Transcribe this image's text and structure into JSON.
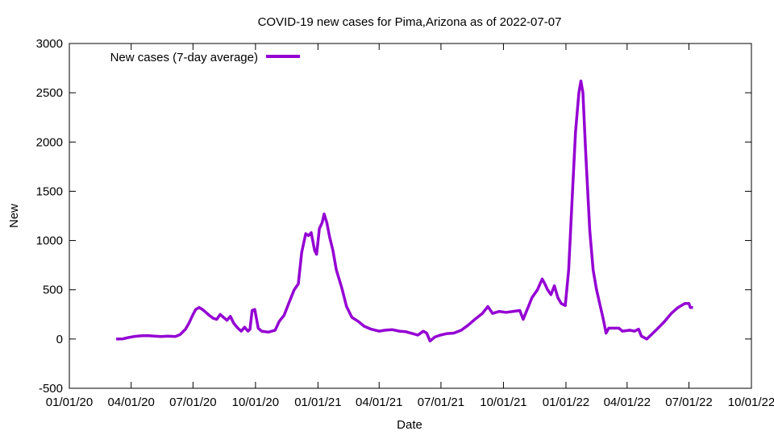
{
  "chart_data": {
    "type": "line",
    "title": "COVID-19 new cases for Pima,Arizona as of 2022-07-07",
    "xlabel": "Date",
    "ylabel": "New",
    "xlim": [
      "2020-01-01",
      "2022-10-01"
    ],
    "ylim": [
      -500,
      3000
    ],
    "y_ticks": [
      -500,
      0,
      500,
      1000,
      1500,
      2000,
      2500,
      3000
    ],
    "x_ticks": [
      {
        "date": "2020-01-01",
        "label": "01/01/20"
      },
      {
        "date": "2020-04-01",
        "label": "04/01/20"
      },
      {
        "date": "2020-07-01",
        "label": "07/01/20"
      },
      {
        "date": "2020-10-01",
        "label": "10/01/20"
      },
      {
        "date": "2021-01-01",
        "label": "01/01/21"
      },
      {
        "date": "2021-04-01",
        "label": "04/01/21"
      },
      {
        "date": "2021-07-01",
        "label": "07/01/21"
      },
      {
        "date": "2021-10-01",
        "label": "10/01/21"
      },
      {
        "date": "2022-01-01",
        "label": "01/01/22"
      },
      {
        "date": "2022-04-01",
        "label": "04/01/22"
      },
      {
        "date": "2022-07-01",
        "label": "07/01/22"
      },
      {
        "date": "2022-10-01",
        "label": "10/01/22"
      }
    ],
    "grid": false,
    "legend_position": "top-left",
    "series": [
      {
        "name": "New cases (7-day average)",
        "color": "#9400d3",
        "points": [
          [
            "2020-03-10",
            0
          ],
          [
            "2020-03-20",
            2
          ],
          [
            "2020-03-28",
            15
          ],
          [
            "2020-04-05",
            25
          ],
          [
            "2020-04-15",
            32
          ],
          [
            "2020-04-25",
            35
          ],
          [
            "2020-05-05",
            30
          ],
          [
            "2020-05-15",
            25
          ],
          [
            "2020-05-25",
            30
          ],
          [
            "2020-06-05",
            25
          ],
          [
            "2020-06-12",
            45
          ],
          [
            "2020-06-20",
            100
          ],
          [
            "2020-06-25",
            160
          ],
          [
            "2020-07-01",
            250
          ],
          [
            "2020-07-05",
            300
          ],
          [
            "2020-07-10",
            320
          ],
          [
            "2020-07-15",
            300
          ],
          [
            "2020-07-20",
            270
          ],
          [
            "2020-07-25",
            240
          ],
          [
            "2020-07-31",
            210
          ],
          [
            "2020-08-05",
            200
          ],
          [
            "2020-08-10",
            250
          ],
          [
            "2020-08-15",
            220
          ],
          [
            "2020-08-20",
            190
          ],
          [
            "2020-08-25",
            230
          ],
          [
            "2020-08-30",
            160
          ],
          [
            "2020-09-05",
            110
          ],
          [
            "2020-09-10",
            80
          ],
          [
            "2020-09-15",
            120
          ],
          [
            "2020-09-20",
            80
          ],
          [
            "2020-09-23",
            100
          ],
          [
            "2020-09-26",
            290
          ],
          [
            "2020-09-30",
            300
          ],
          [
            "2020-10-05",
            110
          ],
          [
            "2020-10-10",
            80
          ],
          [
            "2020-10-20",
            70
          ],
          [
            "2020-10-30",
            90
          ],
          [
            "2020-11-05",
            180
          ],
          [
            "2020-11-12",
            240
          ],
          [
            "2020-11-20",
            380
          ],
          [
            "2020-11-27",
            500
          ],
          [
            "2020-12-03",
            560
          ],
          [
            "2020-12-08",
            880
          ],
          [
            "2020-12-14",
            1070
          ],
          [
            "2020-12-18",
            1050
          ],
          [
            "2020-12-22",
            1080
          ],
          [
            "2020-12-27",
            900
          ],
          [
            "2020-12-30",
            860
          ],
          [
            "2021-01-03",
            1120
          ],
          [
            "2021-01-07",
            1180
          ],
          [
            "2021-01-10",
            1270
          ],
          [
            "2021-01-14",
            1180
          ],
          [
            "2021-01-18",
            1040
          ],
          [
            "2021-01-23",
            900
          ],
          [
            "2021-01-28",
            700
          ],
          [
            "2021-02-05",
            520
          ],
          [
            "2021-02-12",
            330
          ],
          [
            "2021-02-20",
            220
          ],
          [
            "2021-03-01",
            180
          ],
          [
            "2021-03-10",
            130
          ],
          [
            "2021-03-20",
            100
          ],
          [
            "2021-04-01",
            80
          ],
          [
            "2021-04-10",
            90
          ],
          [
            "2021-04-20",
            95
          ],
          [
            "2021-05-01",
            80
          ],
          [
            "2021-05-10",
            75
          ],
          [
            "2021-05-20",
            55
          ],
          [
            "2021-05-28",
            40
          ],
          [
            "2021-06-05",
            80
          ],
          [
            "2021-06-10",
            60
          ],
          [
            "2021-06-15",
            -20
          ],
          [
            "2021-06-22",
            20
          ],
          [
            "2021-06-30",
            40
          ],
          [
            "2021-07-10",
            55
          ],
          [
            "2021-07-20",
            60
          ],
          [
            "2021-07-31",
            90
          ],
          [
            "2021-08-10",
            140
          ],
          [
            "2021-08-20",
            200
          ],
          [
            "2021-08-31",
            260
          ],
          [
            "2021-09-08",
            330
          ],
          [
            "2021-09-15",
            260
          ],
          [
            "2021-09-25",
            280
          ],
          [
            "2021-10-05",
            270
          ],
          [
            "2021-10-15",
            280
          ],
          [
            "2021-10-25",
            290
          ],
          [
            "2021-10-30",
            200
          ],
          [
            "2021-11-05",
            300
          ],
          [
            "2021-11-12",
            420
          ],
          [
            "2021-11-20",
            500
          ],
          [
            "2021-11-27",
            610
          ],
          [
            "2021-12-01",
            560
          ],
          [
            "2021-12-05",
            500
          ],
          [
            "2021-12-10",
            450
          ],
          [
            "2021-12-15",
            540
          ],
          [
            "2021-12-20",
            420
          ],
          [
            "2021-12-25",
            360
          ],
          [
            "2021-12-31",
            340
          ],
          [
            "2022-01-05",
            700
          ],
          [
            "2022-01-10",
            1400
          ],
          [
            "2022-01-15",
            2100
          ],
          [
            "2022-01-20",
            2500
          ],
          [
            "2022-01-23",
            2620
          ],
          [
            "2022-01-26",
            2500
          ],
          [
            "2022-01-30",
            1900
          ],
          [
            "2022-02-05",
            1100
          ],
          [
            "2022-02-10",
            700
          ],
          [
            "2022-02-15",
            500
          ],
          [
            "2022-02-20",
            350
          ],
          [
            "2022-02-25",
            200
          ],
          [
            "2022-03-01",
            60
          ],
          [
            "2022-03-05",
            110
          ],
          [
            "2022-03-20",
            110
          ],
          [
            "2022-03-25",
            80
          ],
          [
            "2022-04-05",
            90
          ],
          [
            "2022-04-12",
            80
          ],
          [
            "2022-04-18",
            100
          ],
          [
            "2022-04-22",
            30
          ],
          [
            "2022-04-30",
            0
          ],
          [
            "2022-05-06",
            40
          ],
          [
            "2022-05-15",
            100
          ],
          [
            "2022-05-25",
            170
          ],
          [
            "2022-06-05",
            260
          ],
          [
            "2022-06-15",
            320
          ],
          [
            "2022-06-25",
            360
          ],
          [
            "2022-07-01",
            360
          ],
          [
            "2022-07-03",
            320
          ],
          [
            "2022-07-07",
            320
          ]
        ]
      }
    ]
  }
}
